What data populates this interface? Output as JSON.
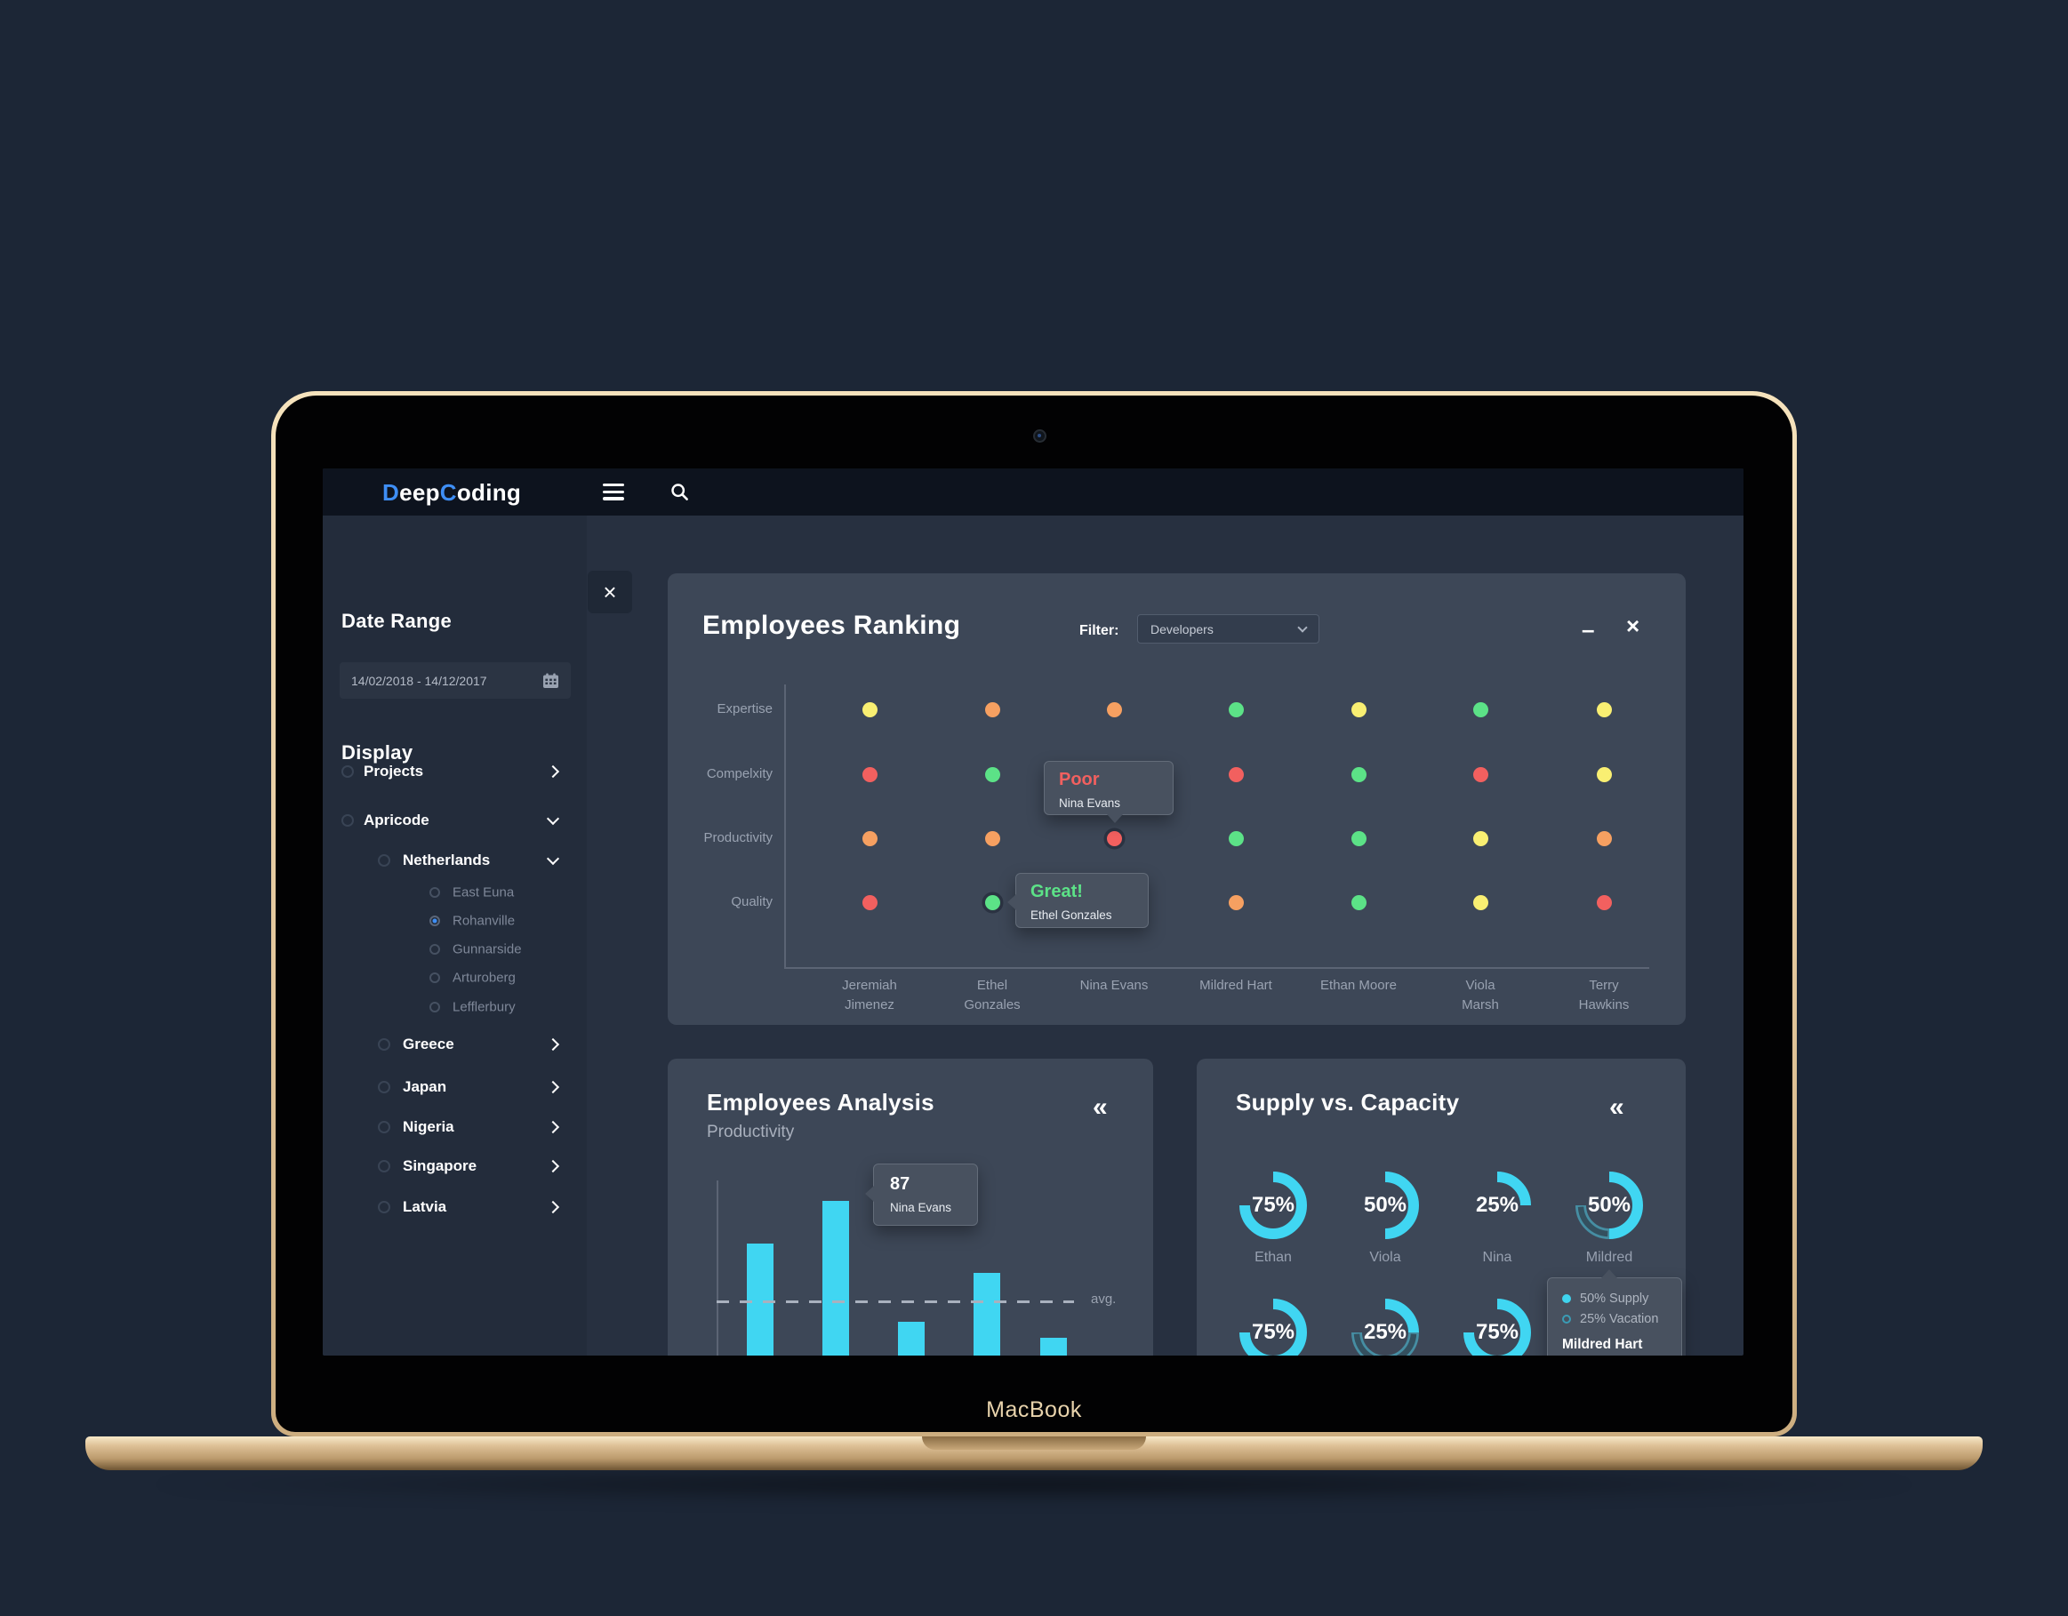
{
  "device": {
    "label": "MacBook"
  },
  "navbar": {
    "logo_d": "D",
    "logo_eep": "eep",
    "logo_c": "C",
    "logo_oding": "oding"
  },
  "icons": {
    "close": "×",
    "minimize": "–",
    "collapse": "«"
  },
  "labels": {
    "avg": "avg."
  },
  "sidebar": {
    "date_range_title": "Date Range",
    "date_range_value": "14/02/2018 - 14/12/2017",
    "display_title": "Display",
    "tree": [
      {
        "label": "Projects",
        "level": 1,
        "chevron": "right",
        "selected": false
      },
      {
        "label": "Apricode",
        "level": 1,
        "chevron": "down",
        "selected": false
      },
      {
        "label": "Netherlands",
        "level": 2,
        "chevron": "down",
        "selected": false
      },
      {
        "label": "East Euna",
        "level": 3,
        "chevron": null,
        "selected": false
      },
      {
        "label": "Rohanville",
        "level": 3,
        "chevron": null,
        "selected": true
      },
      {
        "label": "Gunnarside",
        "level": 3,
        "chevron": null,
        "selected": false
      },
      {
        "label": "Arturoberg",
        "level": 3,
        "chevron": null,
        "selected": false
      },
      {
        "label": "Lefflerbury",
        "level": 3,
        "chevron": null,
        "selected": false
      },
      {
        "label": "Greece",
        "level": 2,
        "chevron": "right",
        "selected": false
      },
      {
        "label": "Japan",
        "level": 2,
        "chevron": "right",
        "selected": false
      },
      {
        "label": "Nigeria",
        "level": 2,
        "chevron": "right",
        "selected": false
      },
      {
        "label": "Singapore",
        "level": 2,
        "chevron": "right",
        "selected": false
      },
      {
        "label": "Latvia",
        "level": 2,
        "chevron": "right",
        "selected": false
      }
    ]
  },
  "ranking": {
    "filter_label": "Filter:",
    "filter_value": "Developers"
  },
  "tooltips": {
    "poor": {
      "title": "Poor",
      "name": "Nina Evans"
    },
    "great": {
      "title": "Great!",
      "name": "Ethel Gonzales"
    },
    "bar": {
      "value": "87",
      "name": "Nina Evans"
    },
    "supply": {
      "supply": "50% Supply",
      "vacation": "25% Vacation",
      "name": "Mildred Hart"
    }
  },
  "colors": {
    "accent_blue": "#3e8ef5",
    "cyan": "#40d6f2",
    "dot_green": "#5ce287",
    "dot_yellow": "#f9ef72",
    "dot_orange": "#f6a061",
    "dot_red": "#f2605f",
    "panel": "#3d4757",
    "tooltip_red": "#f2605f",
    "tooltip_green": "#5ce287"
  },
  "chart_data": [
    {
      "type": "scatter",
      "title": "Employees Ranking",
      "filter": "Developers",
      "rows": [
        "Expertise",
        "Compelxity",
        "Productivity",
        "Quality"
      ],
      "columns": [
        [
          "Jeremiah",
          "Jimenez"
        ],
        [
          "Ethel",
          "Gonzales"
        ],
        [
          "Nina Evans"
        ],
        [
          "Mildred Hart"
        ],
        [
          "Ethan Moore"
        ],
        [
          "Viola",
          "Marsh"
        ],
        [
          "Terry",
          "Hawkins"
        ]
      ],
      "color_scale": {
        "green": "#5ce287",
        "yellow": "#f9ef72",
        "orange": "#f6a061",
        "red": "#f2605f"
      },
      "cells": [
        [
          "yellow",
          "orange",
          "orange",
          "green",
          "yellow",
          "green",
          "yellow"
        ],
        [
          "red",
          "green",
          "hidden",
          "red",
          "green",
          "red",
          "yellow"
        ],
        [
          "orange",
          "orange",
          "red ring",
          "green",
          "green",
          "yellow",
          "orange"
        ],
        [
          "red",
          "green ring",
          "hidden",
          "orange",
          "green",
          "yellow",
          "red"
        ]
      ],
      "annotations": [
        {
          "label": "Poor",
          "employee": "Nina Evans",
          "row": "Productivity",
          "col": "Nina Evans"
        },
        {
          "label": "Great!",
          "employee": "Ethel Gonzales",
          "row": "Quality",
          "col": "Ethel Gonzales"
        }
      ],
      "legend_note": "dot color encodes rating: green=great, yellow=good, orange=average, red=poor"
    },
    {
      "type": "bar",
      "title": "Employees Analysis",
      "subtitle": "Productivity",
      "values": [
        65,
        87,
        25,
        50,
        17
      ],
      "highlight": {
        "index": 1,
        "value": 87,
        "employee": "Nina Evans"
      },
      "avg_line": 36,
      "avg_label": "avg.",
      "bar_color": "#40d6f2",
      "grid": false,
      "ylim": [
        0,
        100
      ]
    },
    {
      "type": "donut-grid",
      "title": "Supply vs. Capacity",
      "unit": "%",
      "arc_color": "#40d6f2",
      "donuts": [
        {
          "pct": 75,
          "label": "Ethan"
        },
        {
          "pct": 50,
          "label": "Viola"
        },
        {
          "pct": 25,
          "label": "Nina"
        },
        {
          "pct": 50,
          "label": "Mildred",
          "vacation_pct": 25
        },
        {
          "pct": 75,
          "label": ""
        },
        {
          "pct": 25,
          "label": "",
          "vacation_pct": 50
        },
        {
          "pct": 75,
          "label": ""
        },
        {
          "covered_by_tooltip": true
        }
      ],
      "tooltip": {
        "supply": "50% Supply",
        "vacation": "25% Vacation",
        "employee": "Mildred Hart"
      }
    }
  ]
}
